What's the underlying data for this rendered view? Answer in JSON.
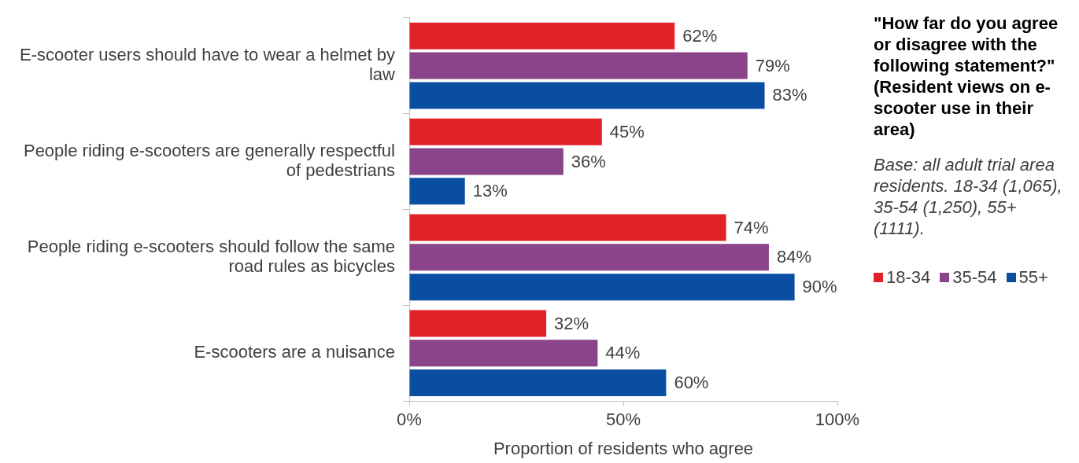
{
  "chart_data": {
    "type": "bar",
    "orientation": "horizontal",
    "title": "\"How far do you agree or disagree with the following statement?\" (Resident views on e-scooter use in their area)",
    "annotations": [
      "Base: all adult trial area residents. 18-34 (1,065), 35-54 (1,250), 55+ (1111)."
    ],
    "xlabel": "Proportion of residents who agree",
    "categories": [
      "E-scooter users should have to wear a helmet by law",
      "People riding e-scooters are generally respectful of pedestrians",
      "People riding e-scooters should follow the same road rules as bicycles",
      "E-scooters are a nuisance"
    ],
    "series": [
      {
        "name": "18-34",
        "color": "#e32129",
        "values": [
          62,
          45,
          74,
          32
        ],
        "value_labels": [
          "62%",
          "45%",
          "74%",
          "32%"
        ]
      },
      {
        "name": "35-54",
        "color": "#8a4489",
        "values": [
          79,
          36,
          84,
          44
        ],
        "value_labels": [
          "79%",
          "36%",
          "84%",
          "44%"
        ]
      },
      {
        "name": "55+",
        "color": "#0a4ea2",
        "values": [
          83,
          13,
          90,
          60
        ],
        "value_labels": [
          "83%",
          "13%",
          "90%",
          "60%"
        ]
      }
    ],
    "xlim": [
      0,
      100
    ],
    "xticks": [
      {
        "value": 0,
        "label": "0%"
      },
      {
        "value": 50,
        "label": "50%"
      },
      {
        "value": 100,
        "label": "100%"
      }
    ],
    "grid": false,
    "legend": "right"
  }
}
